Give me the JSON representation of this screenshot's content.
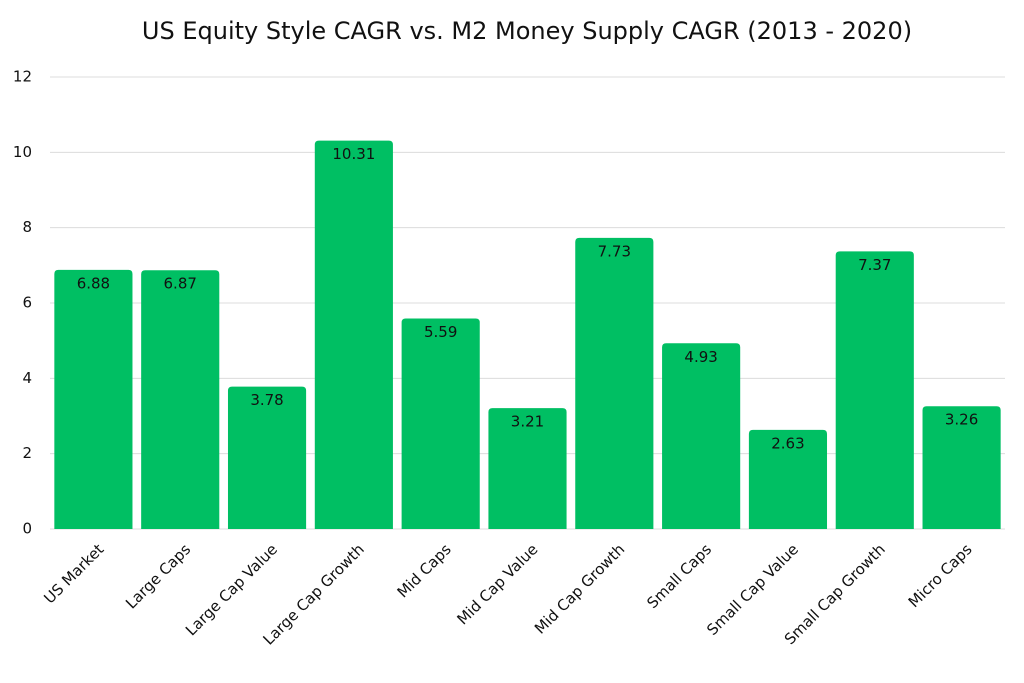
{
  "chart_data": {
    "type": "bar",
    "title": "US Equity Style CAGR vs. M2 Money Supply CAGR (2013 - 2020)",
    "categories": [
      "US Market",
      "Large Caps",
      "Large Cap Value",
      "Large Cap Growth",
      "Mid Caps",
      "Mid Cap Value",
      "Mid Cap Growth",
      "Small Caps",
      "Small Cap Value",
      "Small Cap Growth",
      "Micro Caps"
    ],
    "values": [
      6.88,
      6.87,
      3.78,
      10.31,
      5.59,
      3.21,
      7.73,
      4.93,
      2.63,
      7.37,
      3.26
    ],
    "color": "#00bf63",
    "ylim": [
      0,
      12
    ],
    "yticks": [
      0,
      2,
      4,
      6,
      8,
      10,
      12
    ],
    "grid": true
  }
}
